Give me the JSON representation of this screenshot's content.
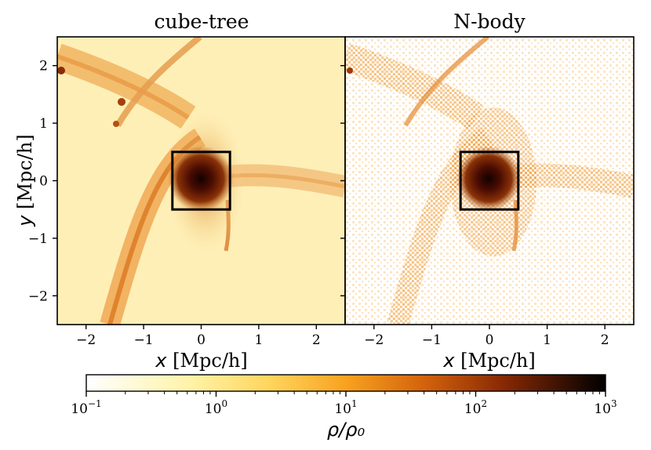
{
  "chart_data": [
    {
      "type": "heatmap",
      "title": "cube-tree",
      "xlabel_var": "x",
      "xlabel_unit": "[Mpc/h]",
      "ylabel_var": "y",
      "ylabel_unit": "[Mpc/h]",
      "xlim": [
        -2.5,
        2.5
      ],
      "ylim": [
        -2.5,
        2.5
      ],
      "xticks": [
        -2,
        -1,
        0,
        1,
        2
      ],
      "yticks": [
        -2,
        -1,
        0,
        1,
        2
      ],
      "xtick_labels": [
        "−2",
        "−1",
        "0",
        "1",
        "2"
      ],
      "ytick_labels": [
        "−2",
        "−1",
        "0",
        "1",
        "2"
      ],
      "box": {
        "x": [
          -0.5,
          0.5
        ],
        "y": [
          -0.5,
          0.5
        ]
      }
    },
    {
      "type": "heatmap",
      "title": "N-body",
      "xlabel_var": "x",
      "xlabel_unit": "[Mpc/h]",
      "xlim": [
        -2.5,
        2.5
      ],
      "ylim": [
        -2.5,
        2.5
      ],
      "xticks": [
        -2,
        -1,
        0,
        1,
        2
      ],
      "xtick_labels": [
        "−2",
        "−1",
        "0",
        "1",
        "2"
      ],
      "box": {
        "x": [
          -0.5,
          0.5
        ],
        "y": [
          -0.5,
          0.5
        ]
      }
    }
  ],
  "colorbar": {
    "label": "ρ/ρ₀",
    "scale": "log",
    "range": [
      0.1,
      1000
    ],
    "tick_bases": [
      "10",
      "10",
      "10",
      "10",
      "10"
    ],
    "tick_exponents": [
      "−1",
      "0",
      "1",
      "2",
      "3"
    ],
    "colors": [
      "#ffffff",
      "#fff6b0",
      "#ffd35c",
      "#f79a1e",
      "#c8500a",
      "#7a1c04",
      "#000000"
    ]
  }
}
